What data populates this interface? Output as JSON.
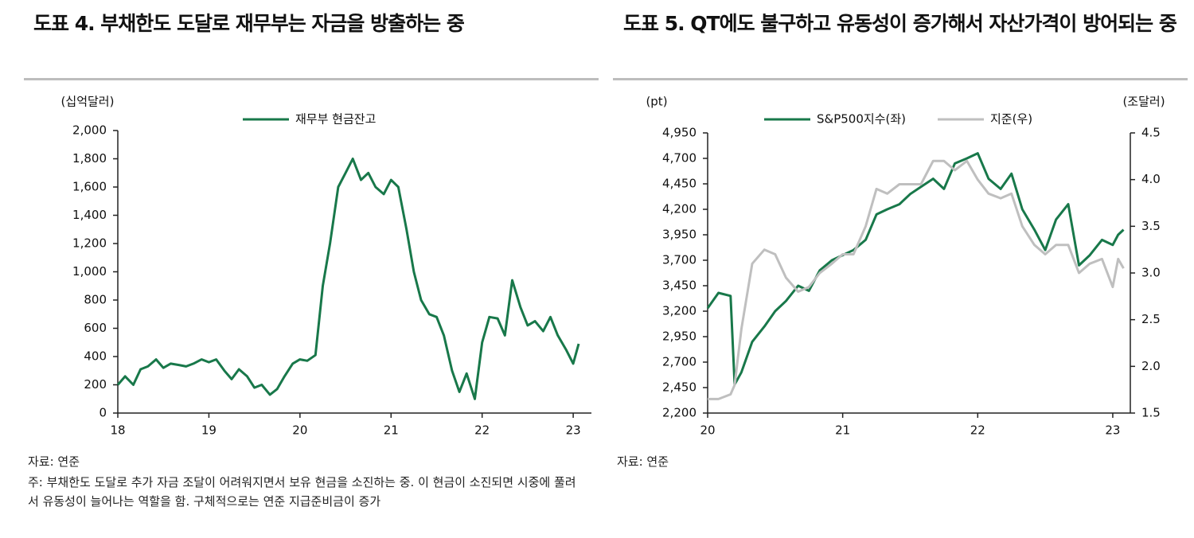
{
  "chart_data": [
    {
      "type": "line",
      "title": "도표 4. 부채한도 도달로 재무부는 자금을 방출하는 중",
      "y_label": "(십억달러)",
      "x": [
        18.0,
        18.08,
        18.17,
        18.25,
        18.33,
        18.42,
        18.5,
        18.58,
        18.67,
        18.75,
        18.83,
        18.92,
        19.0,
        19.08,
        19.17,
        19.25,
        19.33,
        19.42,
        19.5,
        19.58,
        19.67,
        19.75,
        19.83,
        19.92,
        20.0,
        20.08,
        20.17,
        20.25,
        20.33,
        20.42,
        20.5,
        20.58,
        20.67,
        20.75,
        20.83,
        20.92,
        21.0,
        21.08,
        21.17,
        21.25,
        21.33,
        21.42,
        21.5,
        21.58,
        21.67,
        21.75,
        21.83,
        21.92,
        22.0,
        22.08,
        22.17,
        22.25,
        22.33,
        22.42,
        22.5,
        22.58,
        22.67,
        22.75,
        22.83,
        22.92,
        23.0,
        23.06
      ],
      "series": [
        {
          "name": "재무부  현금잔고",
          "color": "#18784a",
          "values": [
            200,
            260,
            200,
            310,
            330,
            380,
            320,
            350,
            340,
            330,
            350,
            380,
            360,
            380,
            300,
            240,
            310,
            260,
            180,
            200,
            130,
            170,
            260,
            350,
            380,
            370,
            410,
            900,
            1200,
            1600,
            1700,
            1800,
            1650,
            1700,
            1600,
            1550,
            1650,
            1600,
            1300,
            1000,
            800,
            700,
            680,
            550,
            300,
            150,
            280,
            100,
            500,
            680,
            670,
            550,
            940,
            750,
            620,
            650,
            580,
            680,
            550,
            450,
            350,
            490
          ]
        }
      ],
      "xlim": [
        18,
        23.2
      ],
      "xticks": [
        18,
        19,
        20,
        21,
        22,
        23
      ],
      "ylim": [
        0,
        2000
      ],
      "yticks": [
        0,
        200,
        400,
        600,
        800,
        {
          "value": 1000,
          "label": "1,000"
        },
        {
          "value": 1200,
          "label": "1,200"
        },
        {
          "value": 1400,
          "label": "1,400"
        },
        {
          "value": 1600,
          "label": "1,600"
        },
        {
          "value": 1800,
          "label": "1,800"
        },
        {
          "value": 2000,
          "label": "2,000"
        }
      ],
      "source": "자료: 연준",
      "note": "주: 부채한도 도달로 추가 자금 조달이 어려워지면서 보유 현금을 소진하는 중. 이 현금이 소진되면 시중에 풀려서 유동성이 늘어나는 역할을 함. 구체적으로는 연준 지급준비금이 증가"
    },
    {
      "type": "line",
      "title": "도표 5. QT에도 불구하고 유동성이 증가해서 자산가격이 방어되는 중",
      "y_label": "(pt)",
      "y2_label": "(조달러)",
      "x": [
        20.0,
        20.08,
        20.17,
        20.2,
        20.25,
        20.33,
        20.42,
        20.5,
        20.58,
        20.67,
        20.75,
        20.83,
        20.92,
        21.0,
        21.08,
        21.17,
        21.25,
        21.33,
        21.42,
        21.5,
        21.58,
        21.67,
        21.75,
        21.83,
        21.92,
        22.0,
        22.08,
        22.17,
        22.25,
        22.33,
        22.42,
        22.5,
        22.58,
        22.67,
        22.75,
        22.83,
        22.92,
        23.0,
        23.04,
        23.08
      ],
      "series": [
        {
          "name": "S&P500지수(좌)",
          "color": "#18784a",
          "values": [
            3230,
            3380,
            3350,
            2480,
            2600,
            2900,
            3050,
            3200,
            3300,
            3450,
            3400,
            3600,
            3700,
            3750,
            3800,
            3900,
            4150,
            4200,
            4250,
            4350,
            4420,
            4500,
            4400,
            4650,
            4700,
            4750,
            4500,
            4400,
            4550,
            4200,
            4000,
            3800,
            4100,
            4250,
            3650,
            3750,
            3900,
            3850,
            3950,
            4000
          ]
        },
        {
          "name": "지준(우)",
          "color": "#bfbfbf",
          "axis": "y2",
          "values": [
            1.65,
            1.65,
            1.7,
            1.8,
            2.4,
            3.1,
            3.25,
            3.2,
            2.95,
            2.8,
            2.85,
            3.0,
            3.1,
            3.2,
            3.2,
            3.5,
            3.9,
            3.85,
            3.95,
            3.95,
            3.95,
            4.2,
            4.2,
            4.1,
            4.2,
            4.0,
            3.85,
            3.8,
            3.85,
            3.5,
            3.3,
            3.2,
            3.3,
            3.3,
            3.0,
            3.1,
            3.15,
            2.85,
            3.15,
            3.05
          ]
        }
      ],
      "xlim": [
        20,
        23.13
      ],
      "xticks": [
        20,
        21,
        22,
        23
      ],
      "ylim": [
        2200,
        4950
      ],
      "yticks": [
        {
          "value": 2200,
          "label": "2,200"
        },
        {
          "value": 2450,
          "label": "2,450"
        },
        {
          "value": 2700,
          "label": "2,700"
        },
        {
          "value": 2950,
          "label": "2,950"
        },
        {
          "value": 3200,
          "label": "3,200"
        },
        {
          "value": 3450,
          "label": "3,450"
        },
        {
          "value": 3700,
          "label": "3,700"
        },
        {
          "value": 3950,
          "label": "3,950"
        },
        {
          "value": 4200,
          "label": "4,200"
        },
        {
          "value": 4450,
          "label": "4,450"
        },
        {
          "value": 4700,
          "label": "4,700"
        },
        {
          "value": 4950,
          "label": "4,950"
        }
      ],
      "y2lim": [
        1.5,
        4.5
      ],
      "y2ticks": [
        1.5,
        {
          "value": 2,
          "label": "2.0"
        },
        2.5,
        {
          "value": 3,
          "label": "3.0"
        },
        3.5,
        {
          "value": 4,
          "label": "4.0"
        },
        4.5
      ],
      "source": "자료: 연준"
    }
  ]
}
